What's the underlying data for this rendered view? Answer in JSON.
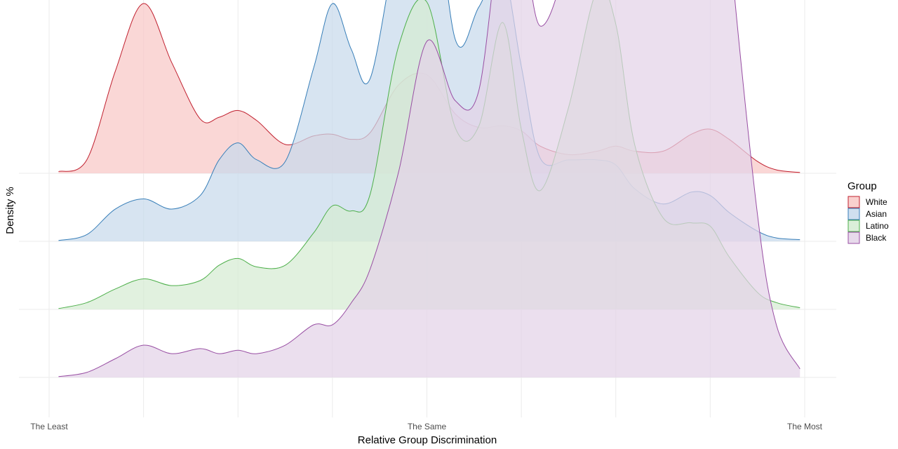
{
  "chart_data": {
    "type": "area",
    "subtype": "ridgeline-density",
    "title": "",
    "xlabel": "Relative Group Discrimination",
    "ylabel": "Density %",
    "xlim": [
      -4,
      4
    ],
    "x_ticks": [
      {
        "value": -4,
        "label": "The Least"
      },
      {
        "value": 0,
        "label": "The Same"
      },
      {
        "value": 4,
        "label": "The Most"
      }
    ],
    "x_minor_grid": [
      -3,
      -2,
      -1,
      1,
      2,
      3
    ],
    "grid": true,
    "legend": {
      "title": "Group",
      "placement": "right"
    },
    "x": [
      -3.9,
      -3.6,
      -3.3,
      -3.0,
      -2.7,
      -2.4,
      -2.2,
      -2.0,
      -1.8,
      -1.5,
      -1.2,
      -1.0,
      -0.8,
      -0.6,
      -0.3,
      0.0,
      0.3,
      0.55,
      0.8,
      1.0,
      1.2,
      1.5,
      1.8,
      2.0,
      2.2,
      2.5,
      2.8,
      3.0,
      3.2,
      3.5,
      3.7,
      3.95
    ],
    "series": [
      {
        "name": "White",
        "color": "#c0202f",
        "fill": "#f8c8c6",
        "values": [
          1.0,
          8.0,
          60.0,
          100.0,
          65.0,
          32.0,
          33.0,
          37.0,
          31.0,
          17.0,
          22.0,
          23.0,
          20.0,
          24.0,
          52.0,
          58.0,
          35.0,
          27.0,
          28.0,
          25.0,
          16.0,
          11.0,
          13.0,
          16.0,
          13.0,
          13.0,
          23.0,
          26.0,
          20.0,
          7.0,
          2.0,
          0.5
        ]
      },
      {
        "name": "Asian",
        "color": "#377eb8",
        "fill": "#c7d9ec",
        "values": [
          0.5,
          4.0,
          19.0,
          25.0,
          19.0,
          27.0,
          48.0,
          58.0,
          48.0,
          47.0,
          102.0,
          140.0,
          113.0,
          96.0,
          181.0,
          232.0,
          119.0,
          138.0,
          160.0,
          103.0,
          49.0,
          48.0,
          48.0,
          45.0,
          31.0,
          22.0,
          29.0,
          27.0,
          17.0,
          6.0,
          2.0,
          1.0
        ]
      },
      {
        "name": "Latino",
        "color": "#4daf4a",
        "fill": "#d5ecd2",
        "values": [
          0.5,
          4.0,
          12.0,
          18.0,
          14.0,
          17.0,
          26.0,
          30.0,
          25.0,
          26.0,
          45.0,
          61.0,
          58.0,
          68.0,
          155.0,
          181.0,
          107.0,
          108.0,
          169.0,
          106.0,
          70.0,
          119.0,
          188.0,
          168.0,
          97.0,
          54.0,
          51.0,
          49.0,
          31.0,
          10.0,
          4.0,
          1.0
        ]
      },
      {
        "name": "Black",
        "color": "#984ea3",
        "fill": "#e3d3e7",
        "values": [
          0.5,
          3.0,
          11.0,
          19.0,
          14.0,
          17.0,
          14.0,
          16.0,
          14.0,
          19.0,
          31.0,
          31.0,
          44.0,
          64.0,
          121.0,
          198.0,
          163.0,
          169.0,
          271.0,
          264.0,
          207.0,
          253.0,
          363.0,
          329.0,
          250.0,
          301.0,
          443.0,
          408.0,
          259.0,
          96.0,
          31.0,
          5.0
        ]
      }
    ]
  }
}
